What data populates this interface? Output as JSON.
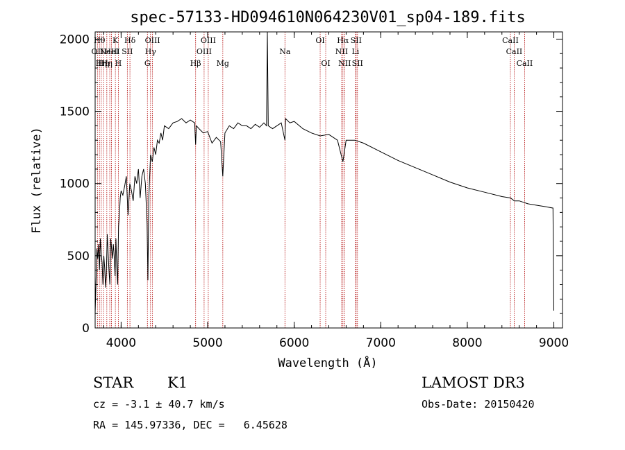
{
  "chart_data": {
    "type": "line",
    "title": "spec-57133-HD094610N064230V01_sp04-189.fits",
    "xlabel": "Wavelength (Å)",
    "ylabel": "Flux (relative)",
    "xlim": [
      3700,
      9100
    ],
    "ylim": [
      0,
      2050
    ],
    "xticks": [
      "4000",
      "5000",
      "6000",
      "7000",
      "8000",
      "9000"
    ],
    "yticks": [
      "0",
      "500",
      "1000",
      "1500",
      "2000"
    ],
    "grid": false,
    "line_color": "#000000",
    "marker_color": "#b00000",
    "series": [
      {
        "x": [
          3700,
          3710,
          3720,
          3730,
          3740,
          3750,
          3760,
          3770,
          3780,
          3790,
          3800,
          3810,
          3820,
          3830,
          3840,
          3850,
          3860,
          3870,
          3880,
          3890,
          3900,
          3910,
          3920,
          3930,
          3940,
          3950,
          3960,
          3970,
          3980,
          3990,
          4000,
          4020,
          4040,
          4060,
          4080,
          4100,
          4120,
          4140,
          4160,
          4180,
          4200,
          4220,
          4240,
          4260,
          4280,
          4300,
          4310,
          4320,
          4340,
          4360,
          4380,
          4400,
          4420,
          4440,
          4460,
          4480,
          4500,
          4550,
          4600,
          4650,
          4700,
          4750,
          4800,
          4850,
          4861,
          4870,
          4900,
          4950,
          5000,
          5050,
          5100,
          5150,
          5175,
          5200,
          5250,
          5300,
          5350,
          5400,
          5450,
          5500,
          5550,
          5600,
          5650,
          5680,
          5690,
          5700,
          5750,
          5800,
          5850,
          5893,
          5900,
          5950,
          6000,
          6100,
          6200,
          6300,
          6400,
          6500,
          6563,
          6600,
          6700,
          6800,
          7000,
          7200,
          7400,
          7600,
          7800,
          8000,
          8200,
          8400,
          8500,
          8542,
          8600,
          8700,
          8800,
          8900,
          8990,
          9000
        ],
        "y": [
          100,
          300,
          550,
          480,
          580,
          400,
          620,
          520,
          450,
          300,
          500,
          420,
          280,
          380,
          650,
          520,
          400,
          300,
          620,
          550,
          480,
          580,
          500,
          360,
          620,
          420,
          300,
          700,
          780,
          900,
          950,
          920,
          980,
          1050,
          780,
          1000,
          950,
          880,
          1050,
          1000,
          1100,
          900,
          1050,
          1100,
          1000,
          720,
          330,
          900,
          1200,
          1150,
          1250,
          1200,
          1300,
          1280,
          1350,
          1300,
          1400,
          1380,
          1420,
          1430,
          1450,
          1420,
          1440,
          1420,
          1270,
          1400,
          1380,
          1350,
          1360,
          1280,
          1320,
          1290,
          1050,
          1350,
          1400,
          1380,
          1420,
          1400,
          1400,
          1380,
          1410,
          1390,
          1420,
          1400,
          2050,
          1400,
          1380,
          1400,
          1420,
          1300,
          1450,
          1420,
          1430,
          1380,
          1350,
          1330,
          1340,
          1300,
          1150,
          1300,
          1300,
          1280,
          1220,
          1160,
          1110,
          1060,
          1010,
          970,
          940,
          910,
          900,
          880,
          880,
          860,
          850,
          840,
          830,
          120
        ]
      }
    ],
    "lines": [
      {
        "wave": 3727,
        "label": "OII",
        "row": 2
      },
      {
        "wave": 3750,
        "label": "Hθ",
        "row": 1
      },
      {
        "wave": 3771,
        "label": "Hη",
        "row": 3
      },
      {
        "wave": 3798,
        "label": "Hη",
        "row": 3
      },
      {
        "wave": 3835,
        "label": "Hη",
        "row": 3
      },
      {
        "wave": 3869,
        "label": "NeIII",
        "row": 2
      },
      {
        "wave": 3889,
        "label": "HeI",
        "row": 2
      },
      {
        "wave": 3934,
        "label": "K",
        "row": 1
      },
      {
        "wave": 3968,
        "label": "H",
        "row": 3
      },
      {
        "wave": 4072,
        "label": "SII",
        "row": 2
      },
      {
        "wave": 4102,
        "label": "Hδ",
        "row": 1
      },
      {
        "wave": 4304,
        "label": "G",
        "row": 3
      },
      {
        "wave": 4340,
        "label": "Hγ",
        "row": 2
      },
      {
        "wave": 4363,
        "label": "OIII",
        "row": 1
      },
      {
        "wave": 4861,
        "label": "Hβ",
        "row": 3
      },
      {
        "wave": 4959,
        "label": "OIII",
        "row": 2
      },
      {
        "wave": 5007,
        "label": "OIII",
        "row": 1
      },
      {
        "wave": 5175,
        "label": "Mg",
        "row": 3
      },
      {
        "wave": 5893,
        "label": "Na",
        "row": 2
      },
      {
        "wave": 6300,
        "label": "OI",
        "row": 1
      },
      {
        "wave": 6364,
        "label": "OI",
        "row": 3
      },
      {
        "wave": 6548,
        "label": "NII",
        "row": 2
      },
      {
        "wave": 6563,
        "label": "Hα",
        "row": 1
      },
      {
        "wave": 6583,
        "label": "NII",
        "row": 3
      },
      {
        "wave": 6708,
        "label": "Li",
        "row": 2
      },
      {
        "wave": 6716,
        "label": "SII",
        "row": 1
      },
      {
        "wave": 6731,
        "label": "SII",
        "row": 3
      },
      {
        "wave": 8498,
        "label": "CaII",
        "row": 1
      },
      {
        "wave": 8542,
        "label": "CaII",
        "row": 2
      },
      {
        "wave": 8662,
        "label": "CaII",
        "row": 3
      }
    ]
  },
  "info": {
    "class": "STAR",
    "subclass": "K1",
    "survey": "LAMOST DR3",
    "cz": "cz = -3.1 ± 40.7 km/s",
    "obs_date": "Obs-Date: 20150420",
    "coords": "RA = 145.97336, DEC =   6.45628"
  }
}
